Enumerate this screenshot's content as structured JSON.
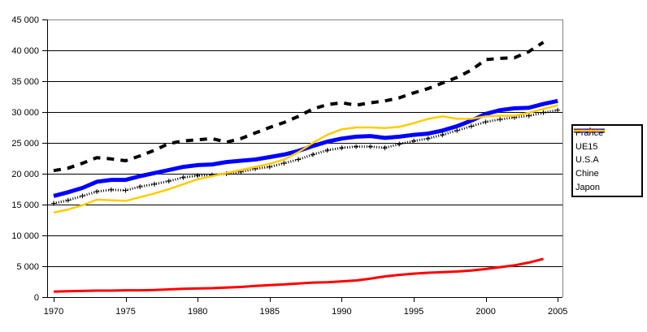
{
  "chart_data": {
    "type": "line",
    "title": "",
    "xlabel": "",
    "ylabel": "",
    "x_start_year": 1970,
    "x_end_year": 2005,
    "ylim": [
      0,
      45000
    ],
    "grid": true,
    "legend_position": "right",
    "colors": {
      "background": "#FFFFFF",
      "gridline": "#000000",
      "axis": "#000000",
      "plot_border": "#848284",
      "legend_border": "#000000"
    },
    "y_ticks": [
      {
        "value": 0,
        "label": "0"
      },
      {
        "value": 5000,
        "label": "5 000"
      },
      {
        "value": 10000,
        "label": "10 000"
      },
      {
        "value": 15000,
        "label": "15 000"
      },
      {
        "value": 20000,
        "label": "20 000"
      },
      {
        "value": 25000,
        "label": "25 000"
      },
      {
        "value": 30000,
        "label": "30 000"
      },
      {
        "value": 35000,
        "label": "35 000"
      },
      {
        "value": 40000,
        "label": "40 000"
      },
      {
        "value": 45000,
        "label": "45 000"
      }
    ],
    "x_ticks": [
      {
        "value": 1970,
        "label": "1970"
      },
      {
        "value": 1975,
        "label": "1975"
      },
      {
        "value": 1980,
        "label": "1980"
      },
      {
        "value": 1985,
        "label": "1985"
      },
      {
        "value": 1990,
        "label": "1990"
      },
      {
        "value": 1995,
        "label": "1995"
      },
      {
        "value": 2000,
        "label": "2000"
      },
      {
        "value": 2005,
        "label": "2005"
      }
    ],
    "series": [
      {
        "name": "France",
        "color": "#0000FF",
        "line_style": "solid",
        "width": 5,
        "marker": "none",
        "start_year": 1970,
        "values": [
          16400,
          17000,
          17700,
          18700,
          19000,
          19000,
          19600,
          20100,
          20600,
          21100,
          21400,
          21500,
          21900,
          22100,
          22300,
          22700,
          23100,
          23700,
          24500,
          25200,
          25700,
          26000,
          26100,
          25800,
          26000,
          26300,
          26500,
          27000,
          27700,
          28600,
          29700,
          30300,
          30600,
          30700,
          31300,
          31800
        ]
      },
      {
        "name": "UE15",
        "color": "#000000",
        "line_style": "dotted",
        "width": 3,
        "marker": "plus",
        "start_year": 1970,
        "values": [
          15200,
          15700,
          16400,
          17100,
          17400,
          17300,
          17900,
          18300,
          18800,
          19400,
          19700,
          19800,
          20000,
          20300,
          20800,
          21100,
          21700,
          22300,
          23100,
          23800,
          24200,
          24400,
          24400,
          24200,
          24800,
          25300,
          25700,
          26300,
          27000,
          27700,
          28400,
          28800,
          29100,
          29400,
          29900,
          30300
        ]
      },
      {
        "name": "U.S.A",
        "color": "#000000",
        "line_style": "dashed",
        "width": 4,
        "marker": "none",
        "start_year": 1970,
        "values": [
          20500,
          20900,
          21700,
          22600,
          22400,
          22100,
          22900,
          23800,
          24900,
          25300,
          25500,
          25700,
          25100,
          25700,
          26600,
          27500,
          28300,
          29300,
          30500,
          31200,
          31500,
          31100,
          31500,
          31800,
          32300,
          33100,
          33800,
          34700,
          35600,
          36800,
          38500,
          38700,
          38800,
          39800,
          41300
        ]
      },
      {
        "name": "Chine",
        "color": "#FF0000",
        "line_style": "solid",
        "width": 3,
        "marker": "none",
        "start_year": 1970,
        "values": [
          900,
          950,
          1000,
          1050,
          1050,
          1100,
          1100,
          1150,
          1250,
          1350,
          1400,
          1450,
          1550,
          1650,
          1800,
          1950,
          2050,
          2200,
          2350,
          2400,
          2550,
          2700,
          3000,
          3350,
          3600,
          3800,
          3950,
          4050,
          4150,
          4300,
          4550,
          4850,
          5150,
          5600,
          6200
        ]
      },
      {
        "name": "Japon",
        "color": "#FFCC00",
        "line_style": "solid",
        "width": 2.5,
        "marker": "none",
        "start_year": 1970,
        "values": [
          13700,
          14200,
          14900,
          15800,
          15700,
          15600,
          16200,
          16800,
          17500,
          18300,
          19100,
          19600,
          20100,
          20600,
          21100,
          21600,
          22300,
          23500,
          25000,
          26300,
          27200,
          27500,
          27500,
          27400,
          27600,
          28200,
          28900,
          29300,
          28900,
          28900,
          29300,
          29400,
          29400,
          29900,
          30500,
          31100
        ]
      }
    ]
  }
}
